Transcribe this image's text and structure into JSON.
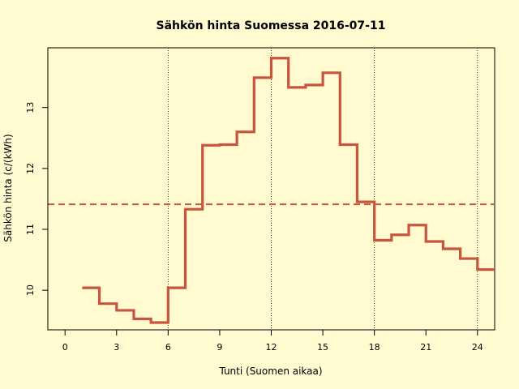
{
  "chart_data": {
    "type": "line",
    "step": "post",
    "title": "Sähkön hinta Suomessa 2016-07-11",
    "xlabel": "Tunti (Suomen aikaa)",
    "ylabel": "Sähkön hinta (c/(kWh)",
    "xlim": [
      -1,
      25
    ],
    "ylim": [
      9.35,
      13.98
    ],
    "x_ticks": [
      0,
      3,
      6,
      9,
      12,
      15,
      18,
      21,
      24
    ],
    "y_ticks": [
      10,
      11,
      12,
      13
    ],
    "vertical_reference_lines": [
      6,
      12,
      18,
      24
    ],
    "average": 11.41,
    "series": [
      {
        "color": "#c8553d",
        "x": [
          1,
          2,
          3,
          4,
          5,
          6,
          7,
          8,
          9,
          10,
          11,
          12,
          13,
          14,
          15,
          16,
          17,
          18,
          19,
          20,
          21,
          22,
          23,
          24,
          25
        ],
        "values": [
          10.04,
          9.78,
          9.67,
          9.53,
          9.47,
          10.04,
          11.33,
          12.38,
          12.39,
          12.6,
          13.49,
          13.81,
          13.33,
          13.37,
          13.57,
          12.39,
          11.45,
          10.82,
          10.91,
          11.07,
          10.8,
          10.68,
          10.52,
          10.34,
          10.34
        ]
      }
    ],
    "average_color": "#c8553d",
    "grid": false
  }
}
